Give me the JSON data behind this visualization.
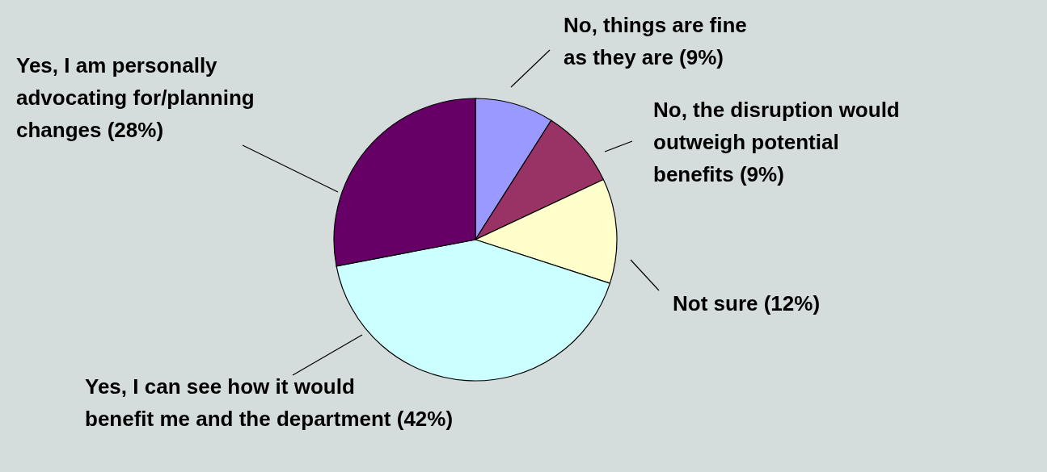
{
  "chart_data": {
    "type": "pie",
    "categories": [
      "No, things are fine\nas they are (9%)",
      "No, the disruption would\noutweigh potential\nbenefits (9%)",
      "Not sure (12%)",
      "Yes, I can see how it would\nbenefit me and the department (42%)",
      "Yes, I am personally\nadvocating for/planning\nchanges (28%)"
    ],
    "values": [
      9,
      9,
      12,
      42,
      28
    ],
    "colors": [
      "#9999ff",
      "#993366",
      "#ffffcc",
      "#ccffff",
      "#660066"
    ]
  }
}
